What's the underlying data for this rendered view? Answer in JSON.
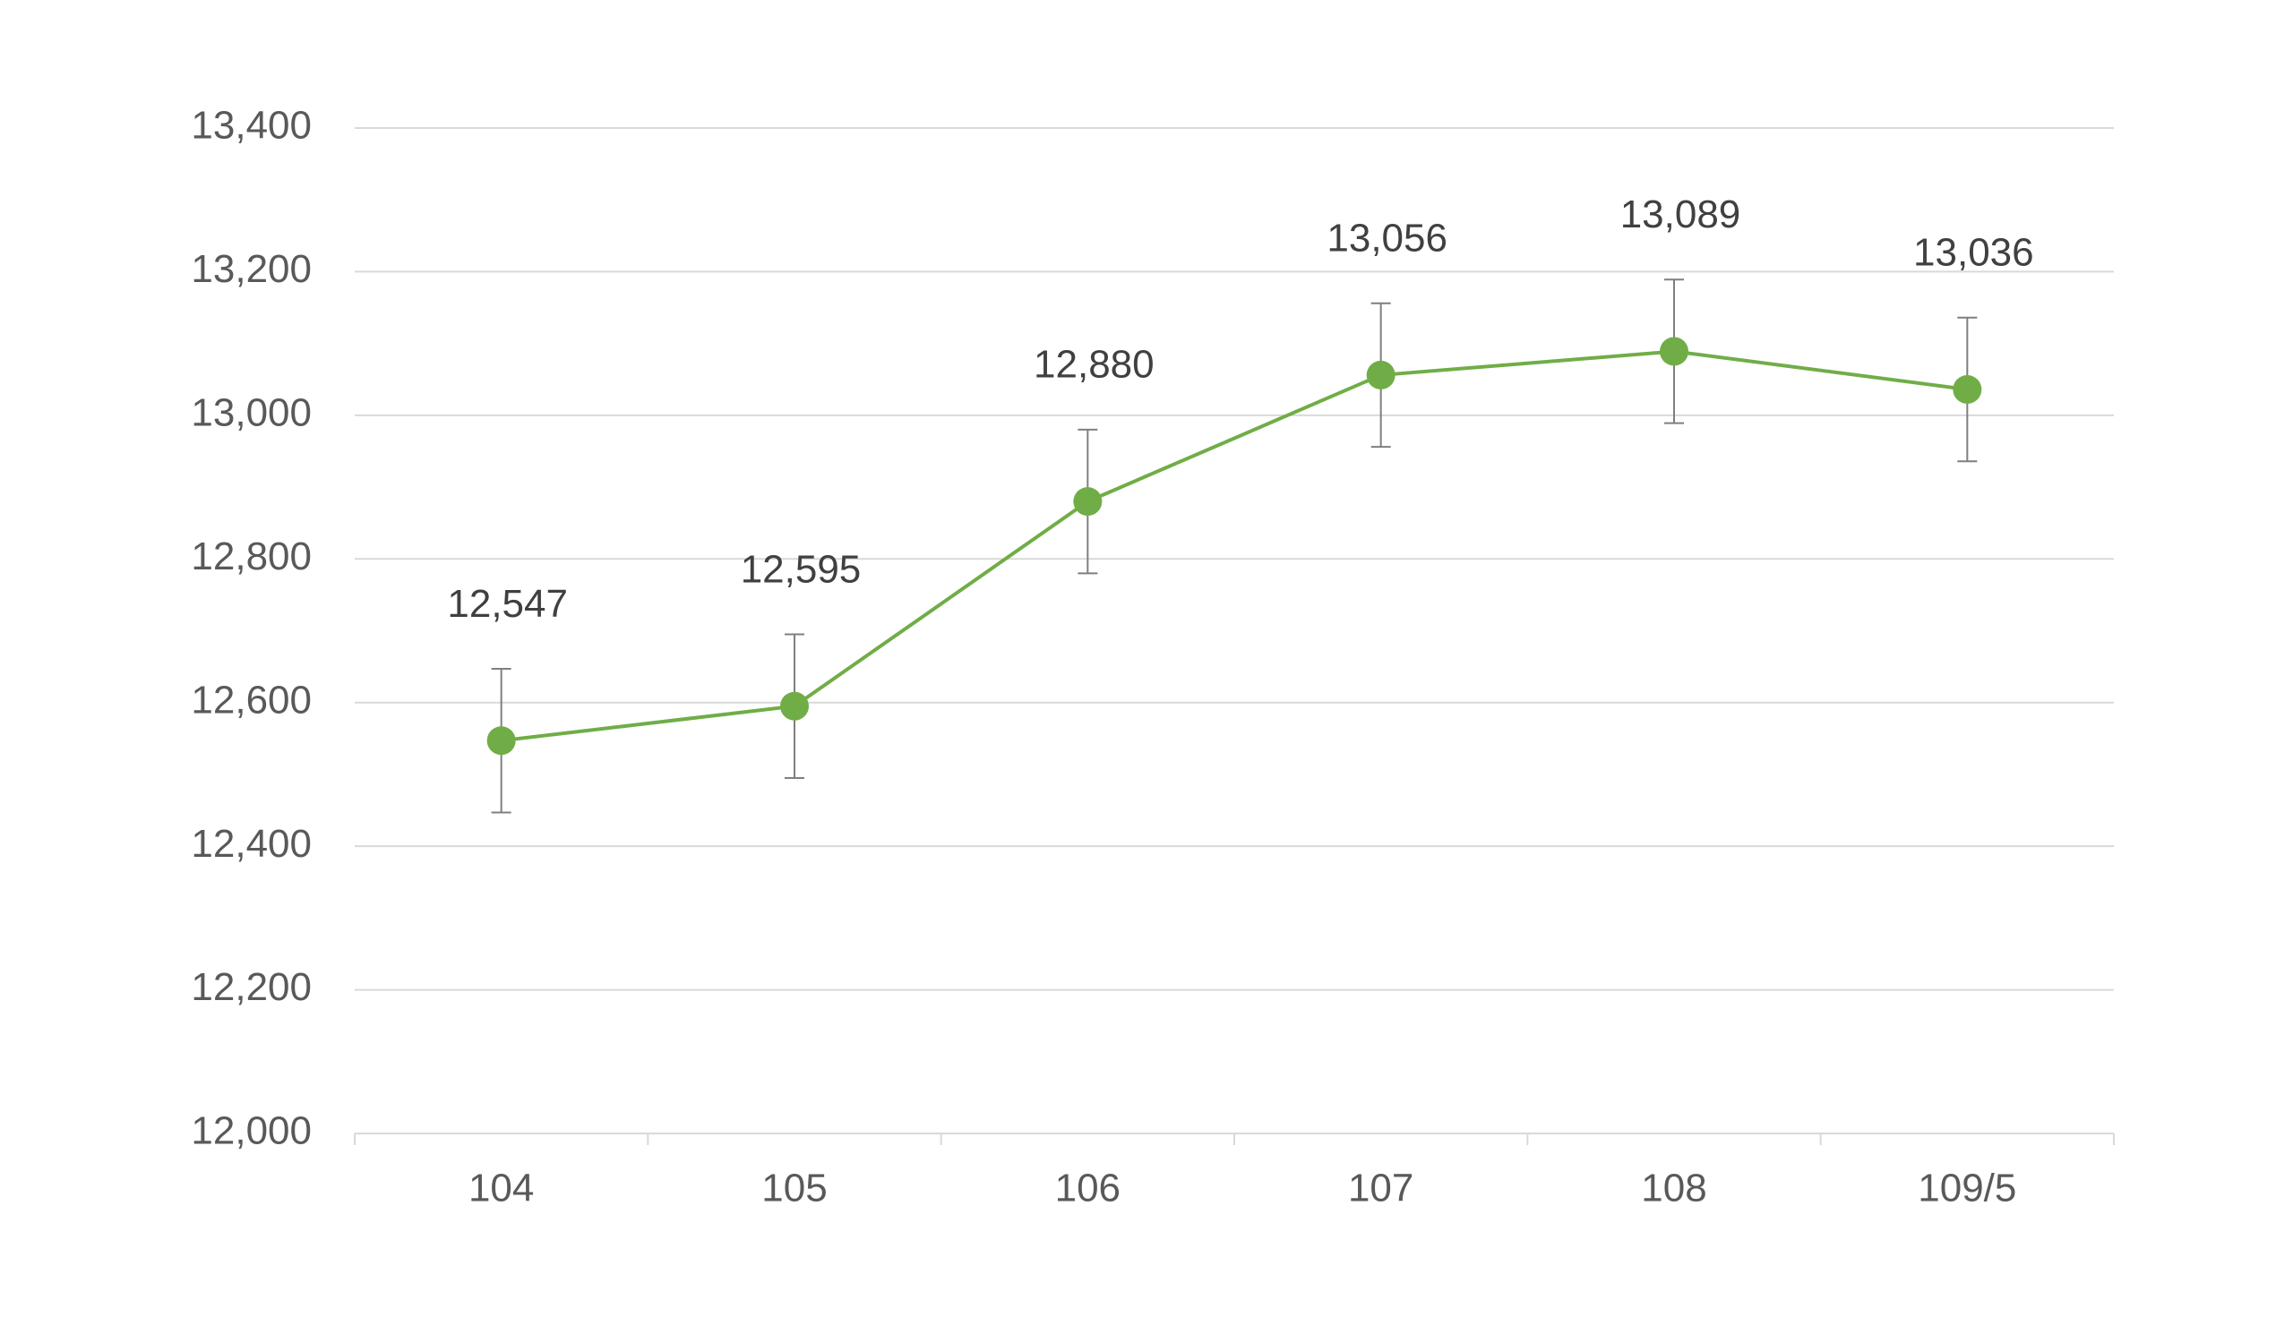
{
  "chart_data": {
    "type": "line",
    "title": "",
    "xlabel": "",
    "ylabel": "",
    "categories": [
      "104",
      "105",
      "106",
      "107",
      "108",
      "109/5"
    ],
    "series": [
      {
        "values": [
          12547,
          12595,
          12880,
          13056,
          13089,
          13036
        ],
        "data_labels": [
          "12,547",
          "12,595",
          "12,880",
          "13,056",
          "13,089",
          "13,036"
        ],
        "error": 100,
        "color": "#70ad47"
      }
    ],
    "ylim": [
      12000,
      13400
    ],
    "yticks": [
      12000,
      12200,
      12400,
      12600,
      12800,
      13000,
      13200,
      13400
    ],
    "ytick_labels": [
      "12,000",
      "12,200",
      "12,400",
      "12,600",
      "12,800",
      "13,000",
      "13,200",
      "13,400"
    ],
    "grid": true,
    "legend": "none",
    "colors": {
      "grid": "#d9d9d9",
      "error_bar": "#7f7f7f",
      "tick_label": "#595959",
      "data_label": "#404040"
    }
  }
}
